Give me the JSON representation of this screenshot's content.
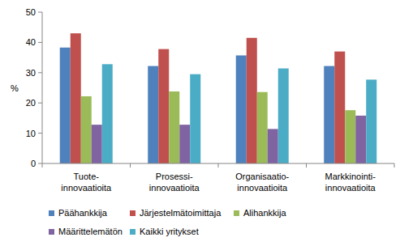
{
  "chart_data": {
    "type": "bar",
    "y_label": "%",
    "categories": [
      "Tuote-\ninnovaatioita",
      "Prosessi-\ninnovaatioita",
      "Organisaatio-\ninnovaatioita",
      "Markkinointi-\ninnovaatioita"
    ],
    "series": [
      {
        "name": "Päähankkija",
        "color": "#4F81BD",
        "values": [
          38.3,
          32.2,
          35.7,
          32.2
        ]
      },
      {
        "name": "Järjestelmätoimittaja",
        "color": "#C0504D",
        "values": [
          43,
          37.8,
          41.5,
          37
        ]
      },
      {
        "name": "Alihankkija",
        "color": "#9BBB59",
        "values": [
          22.2,
          23.8,
          23.6,
          17.6
        ]
      },
      {
        "name": "Määrittelemätön",
        "color": "#8064A2",
        "values": [
          12.8,
          12.8,
          11.4,
          15.8
        ]
      },
      {
        "name": "Kaikki yritykset",
        "color": "#4BACC6",
        "values": [
          32.8,
          29.5,
          31.4,
          27.7
        ]
      }
    ],
    "ylim": [
      0,
      50
    ],
    "yticks": [
      0,
      10,
      20,
      30,
      40,
      50
    ],
    "grid": false,
    "legend": "bottom"
  }
}
